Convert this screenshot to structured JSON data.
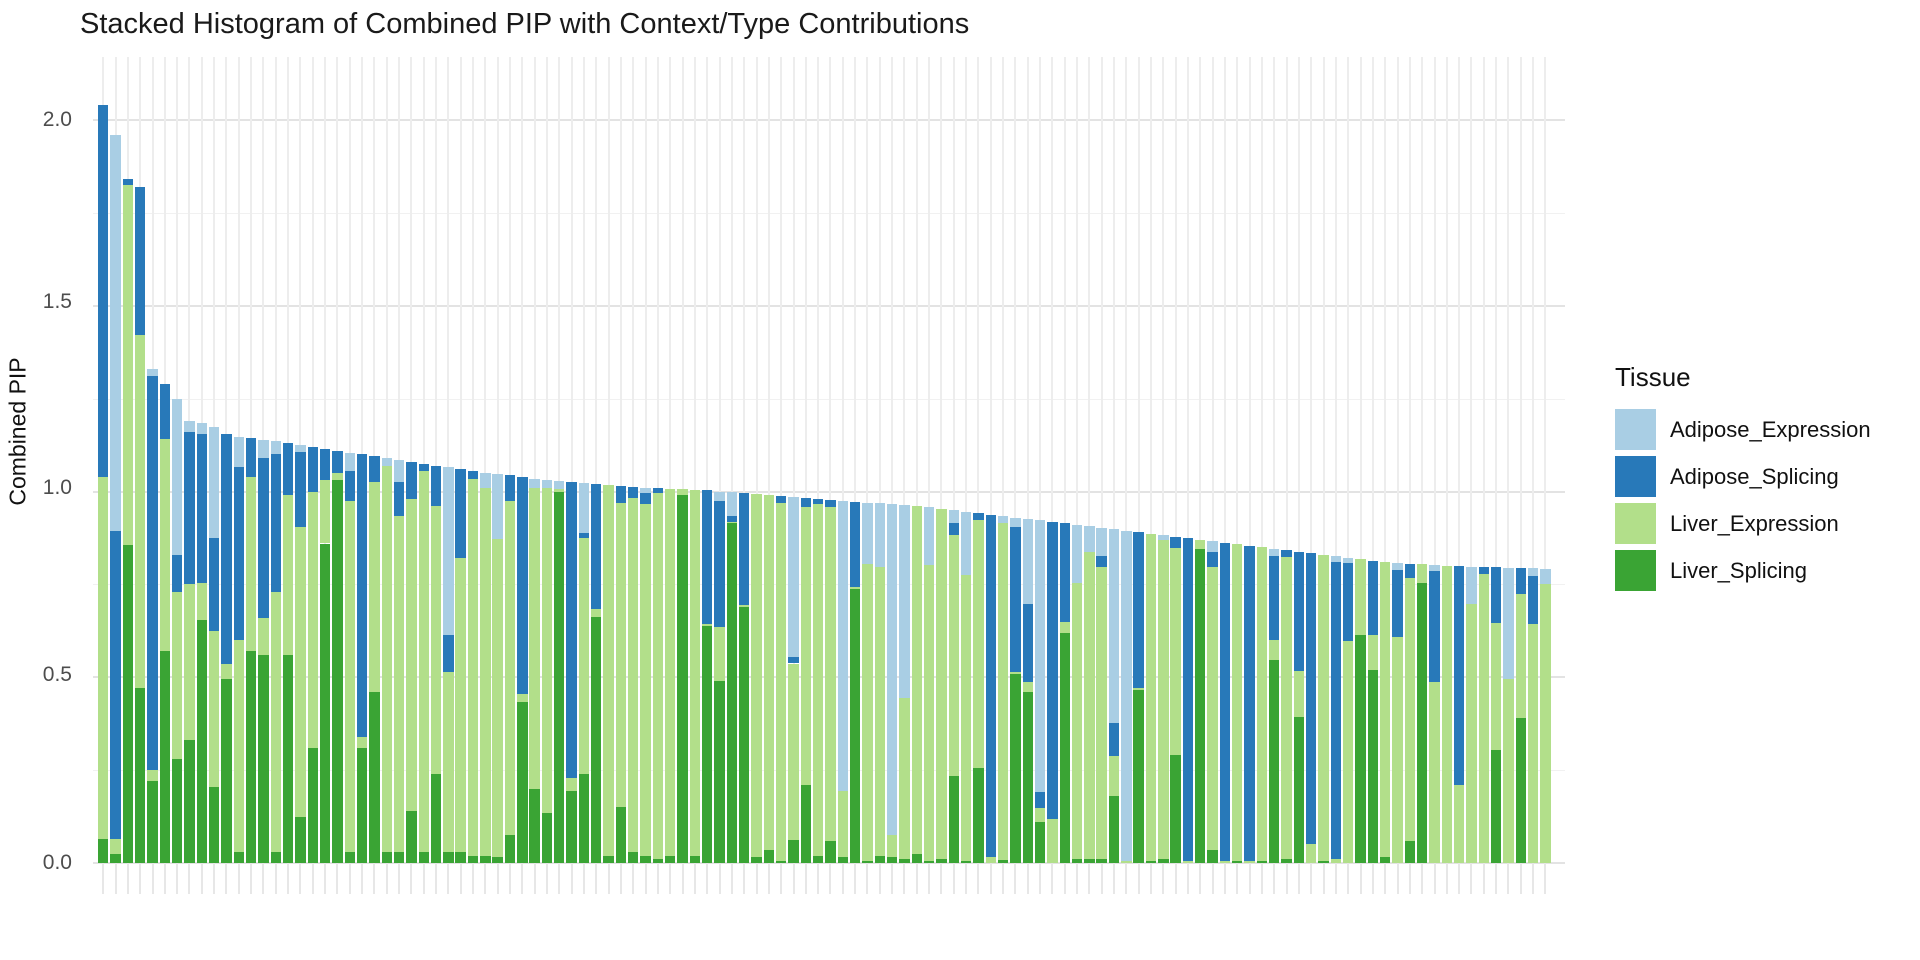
{
  "title": "Stacked Histogram of Combined PIP with Context/Type Contributions",
  "y_axis": {
    "label": "Combined PIP",
    "ticks": [
      "2.0",
      "1.5",
      "1.0",
      "0.5",
      "0.0"
    ],
    "tick_values": [
      2.0,
      1.5,
      1.0,
      0.5,
      0.0
    ]
  },
  "x_axis": {
    "tick_labels": "none"
  },
  "legend": {
    "title": "Tissue",
    "entries": [
      {
        "label": "Adipose_Expression",
        "color": "#a9cee4"
      },
      {
        "label": "Adipose_Splicing",
        "color": "#2879b9"
      },
      {
        "label": "Liver_Expression",
        "color": "#b2df8a"
      },
      {
        "label": "Liver_Splicing",
        "color": "#3aa434"
      }
    ]
  },
  "chart_data": {
    "type": "bar",
    "stacked": true,
    "title": "Stacked Histogram of Combined PIP with Context/Type Contributions",
    "xlabel": "",
    "ylabel": "Combined PIP",
    "ylim": [
      0,
      2.175
    ],
    "grid": "on",
    "legend_position": "right",
    "series_top_to_bottom": [
      "Adipose_Expression",
      "Adipose_Splicing",
      "Liver_Expression",
      "Liver_Splicing"
    ],
    "note": "118 variants sorted by descending combined PIP; values per bar are [Adipose_Expression, Adipose_Splicing, Liver_Expression, Liver_Splicing]",
    "bars": [
      [
        0,
        1.0,
        0.975,
        0.065
      ],
      [
        1.065,
        0.83,
        0.04,
        0.025
      ],
      [
        0,
        0.015,
        0.97,
        0.855
      ],
      [
        0,
        0.4,
        0.95,
        0.47
      ],
      [
        0.02,
        1.06,
        0.03,
        0.22
      ],
      [
        0,
        0.15,
        0.57,
        0.57
      ],
      [
        0.42,
        0.1,
        0.45,
        0.28
      ],
      [
        0.03,
        0.41,
        0.42,
        0.33
      ],
      [
        0.03,
        0.4,
        0.1,
        0.655
      ],
      [
        0.3,
        0.25,
        0.42,
        0.205
      ],
      [
        0,
        0.62,
        0.04,
        0.495
      ],
      [
        0.08,
        0.467,
        0.57,
        0.03
      ],
      [
        0,
        0.105,
        0.47,
        0.57
      ],
      [
        0.05,
        0.43,
        0.1,
        0.56
      ],
      [
        0.035,
        0.37,
        0.7,
        0.03
      ],
      [
        0,
        0.14,
        0.43,
        0.56
      ],
      [
        0.02,
        0.2,
        0.78,
        0.125
      ],
      [
        0,
        0.12,
        0.69,
        0.31
      ],
      [
        0,
        0.085,
        0.17,
        0.86
      ],
      [
        0,
        0.06,
        0.02,
        1.03
      ],
      [
        0.05,
        0.08,
        0.945,
        0.03
      ],
      [
        0,
        0.76,
        0.03,
        0.31
      ],
      [
        0,
        0.07,
        0.565,
        0.46
      ],
      [
        0.02,
        0,
        1.04,
        0.03
      ],
      [
        0.06,
        0.09,
        0.905,
        0.03
      ],
      [
        0,
        0.1,
        0.84,
        0.14
      ],
      [
        0,
        0.02,
        1.025,
        0.03
      ],
      [
        0,
        0.11,
        0.72,
        0.24
      ],
      [
        0.45,
        0.1,
        0.485,
        0.03
      ],
      [
        0,
        0.24,
        0.79,
        0.03
      ],
      [
        0,
        0.02,
        1.015,
        0.02
      ],
      [
        0.04,
        0,
        0.99,
        0.02
      ],
      [
        0.175,
        0,
        0.858,
        0.015
      ],
      [
        0,
        0.07,
        0.9,
        0.075
      ],
      [
        0,
        0.585,
        0.022,
        0.433
      ],
      [
        0.025,
        0,
        0.81,
        0.2
      ],
      [
        0.02,
        0,
        0.875,
        0.135
      ],
      [
        0.02,
        0,
        0.008,
        1.0
      ],
      [
        0,
        0.795,
        0.035,
        0.195
      ],
      [
        0.135,
        0.013,
        0.634,
        0.24
      ],
      [
        0,
        0.336,
        0.023,
        0.661
      ],
      [
        0,
        0,
        0.998,
        0.02
      ],
      [
        0,
        0.045,
        0.82,
        0.15
      ],
      [
        0,
        0.03,
        0.952,
        0.03
      ],
      [
        0.013,
        0.031,
        0.946,
        0.02
      ],
      [
        0,
        0.013,
        0.986,
        0.01
      ],
      [
        0,
        0,
        0.988,
        0.02
      ],
      [
        0,
        0,
        0.016,
        0.99
      ],
      [
        0,
        0,
        0.985,
        0.02
      ],
      [
        0,
        0.36,
        0.005,
        0.638
      ],
      [
        0.025,
        0.34,
        0.145,
        0.49
      ],
      [
        0.065,
        0.015,
        0.004,
        0.914
      ],
      [
        0,
        0.3,
        0.005,
        0.69
      ],
      [
        0,
        0,
        0.976,
        0.016
      ],
      [
        0,
        0,
        0.955,
        0.035
      ],
      [
        0,
        0.02,
        0.963,
        0.005
      ],
      [
        0.43,
        0.018,
        0.474,
        0.063
      ],
      [
        0,
        0.025,
        0.748,
        0.21
      ],
      [
        0,
        0.013,
        0.947,
        0.02
      ],
      [
        0,
        0.02,
        0.898,
        0.06
      ],
      [
        0.78,
        0,
        0.18,
        0.015
      ],
      [
        0,
        0.23,
        0.005,
        0.738
      ],
      [
        0.165,
        0,
        0.8,
        0.005
      ],
      [
        0.17,
        0,
        0.778,
        0.02
      ],
      [
        0.89,
        0,
        0.06,
        0.016
      ],
      [
        0.52,
        0,
        0.434,
        0.01
      ],
      [
        0,
        0,
        0.937,
        0.025
      ],
      [
        0.155,
        0,
        0.798,
        0.005
      ],
      [
        0,
        0,
        0.944,
        0.01
      ],
      [
        0.036,
        0.031,
        0.648,
        0.235
      ],
      [
        0.17,
        0,
        0.771,
        0.005
      ],
      [
        0,
        0.02,
        0.667,
        0.255
      ],
      [
        0,
        0.923,
        0.015,
        0
      ],
      [
        0.02,
        0,
        0.907,
        0.007
      ],
      [
        0.025,
        0.39,
        0.005,
        0.51
      ],
      [
        0.23,
        0.21,
        0.027,
        0.459
      ],
      [
        0.73,
        0.045,
        0.036,
        0.111
      ],
      [
        0,
        0.8,
        0.118,
        0
      ],
      [
        0,
        0.265,
        0.03,
        0.619
      ],
      [
        0.155,
        0,
        0.745,
        0.01
      ],
      [
        0.07,
        0,
        0.826,
        0.01
      ],
      [
        0.075,
        0.03,
        0.787,
        0.01
      ],
      [
        0.52,
        0.09,
        0.108,
        0.18
      ],
      [
        0.888,
        0,
        0.006,
        0
      ],
      [
        0,
        0.42,
        0.005,
        0.465
      ],
      [
        0,
        0,
        0.88,
        0.006
      ],
      [
        0.013,
        0,
        0.859,
        0.01
      ],
      [
        0,
        0.03,
        0.558,
        0.29
      ],
      [
        0,
        0.868,
        0.006,
        0
      ],
      [
        0,
        0,
        0.025,
        0.845
      ],
      [
        0.028,
        0.04,
        0.764,
        0.034
      ],
      [
        0,
        0.856,
        0.006,
        0
      ],
      [
        0,
        0,
        0.852,
        0.006
      ],
      [
        0,
        0.849,
        0.005,
        0
      ],
      [
        0,
        0,
        0.845,
        0.005
      ],
      [
        0.02,
        0.225,
        0.055,
        0.546
      ],
      [
        0,
        0.018,
        0.812,
        0.012
      ],
      [
        0,
        0.32,
        0.124,
        0.394
      ],
      [
        0,
        0.784,
        0.05,
        0
      ],
      [
        0,
        0,
        0.825,
        0.005
      ],
      [
        0.015,
        0.8,
        0.011,
        0
      ],
      [
        0.015,
        0.21,
        0.597,
        0
      ],
      [
        0,
        0,
        0.203,
        0.615
      ],
      [
        0,
        0.2,
        0.094,
        0.52
      ],
      [
        0,
        0,
        0.795,
        0.015
      ],
      [
        0.02,
        0.18,
        0.608,
        0
      ],
      [
        0,
        0.04,
        0.706,
        0.06
      ],
      [
        0,
        0,
        0.049,
        0.755
      ],
      [
        0.015,
        0.3,
        0.487,
        0
      ],
      [
        0,
        0,
        0.8,
        0
      ],
      [
        0,
        0.59,
        0.209,
        0
      ],
      [
        0.1,
        0,
        0.698,
        0
      ],
      [
        0,
        0.02,
        0.777,
        0
      ],
      [
        0,
        0.15,
        0.341,
        0.305
      ],
      [
        0.3,
        0,
        0.495,
        0
      ],
      [
        0,
        0.07,
        0.334,
        0.39
      ],
      [
        0.02,
        0.13,
        0.643,
        0
      ],
      [
        0.04,
        0,
        0.752,
        0
      ]
    ]
  }
}
